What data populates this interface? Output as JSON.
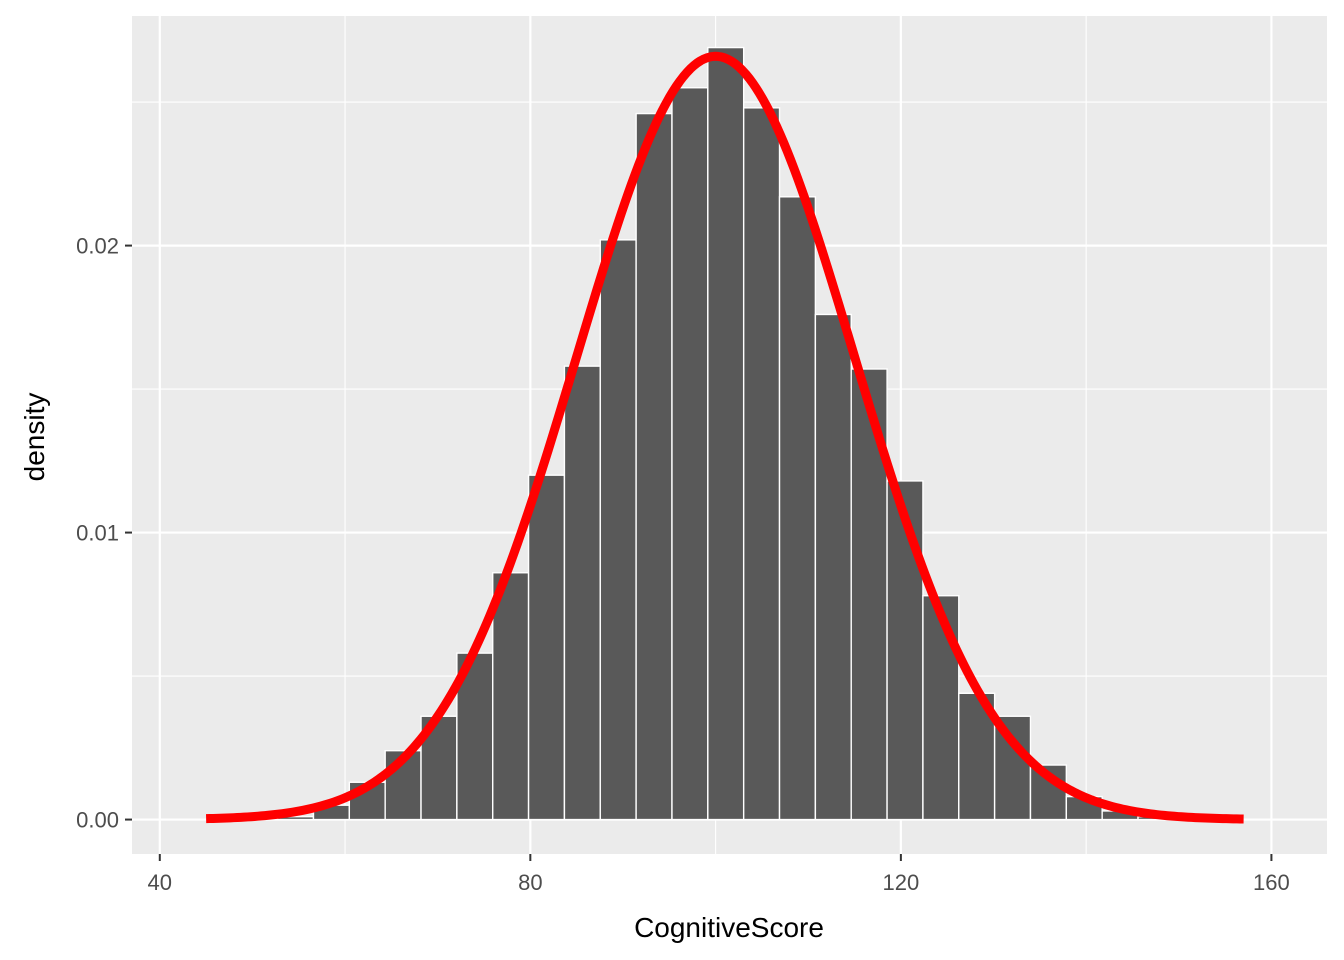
{
  "chart_data": {
    "type": "bar",
    "xlabel": "CognitiveScore",
    "ylabel": "density",
    "xlim": [
      37,
      166
    ],
    "ylim": [
      -0.0012,
      0.028
    ],
    "x_major_ticks": [
      40,
      80,
      120,
      160
    ],
    "x_tick_labels": [
      "40",
      "80",
      "120",
      "160"
    ],
    "x_minor_ticks": [
      60,
      100,
      140
    ],
    "y_major_ticks": [
      0.0,
      0.01,
      0.02
    ],
    "y_tick_labels": [
      "0.00",
      "0.01",
      "0.02"
    ],
    "y_minor_ticks": [
      0.005,
      0.015,
      0.025
    ],
    "grid": true,
    "bin_width": 3.87,
    "bar_fill": "#595959",
    "bar_outline": "#ffffff",
    "panel_background": "#ebebeb",
    "histogram": [
      {
        "x_start": 48.85,
        "x_end": 52.72,
        "density": 5e-05
      },
      {
        "x_start": 52.72,
        "x_end": 56.59,
        "density": 0.0001
      },
      {
        "x_start": 56.59,
        "x_end": 60.46,
        "density": 0.0005
      },
      {
        "x_start": 60.46,
        "x_end": 64.33,
        "density": 0.0013
      },
      {
        "x_start": 64.33,
        "x_end": 68.2,
        "density": 0.0024
      },
      {
        "x_start": 68.2,
        "x_end": 72.07,
        "density": 0.0036
      },
      {
        "x_start": 72.07,
        "x_end": 75.94,
        "density": 0.0058
      },
      {
        "x_start": 75.94,
        "x_end": 79.81,
        "density": 0.0086
      },
      {
        "x_start": 79.81,
        "x_end": 83.68,
        "density": 0.012
      },
      {
        "x_start": 83.68,
        "x_end": 87.55,
        "density": 0.0158
      },
      {
        "x_start": 87.55,
        "x_end": 91.42,
        "density": 0.0202
      },
      {
        "x_start": 91.42,
        "x_end": 95.29,
        "density": 0.0246
      },
      {
        "x_start": 95.29,
        "x_end": 99.16,
        "density": 0.0255
      },
      {
        "x_start": 99.16,
        "x_end": 103.03,
        "density": 0.0269
      },
      {
        "x_start": 103.03,
        "x_end": 106.9,
        "density": 0.0248
      },
      {
        "x_start": 106.9,
        "x_end": 110.77,
        "density": 0.0217
      },
      {
        "x_start": 110.77,
        "x_end": 114.64,
        "density": 0.0176
      },
      {
        "x_start": 114.64,
        "x_end": 118.51,
        "density": 0.0157
      },
      {
        "x_start": 118.51,
        "x_end": 122.38,
        "density": 0.0118
      },
      {
        "x_start": 122.38,
        "x_end": 126.25,
        "density": 0.0078
      },
      {
        "x_start": 126.25,
        "x_end": 130.12,
        "density": 0.0044
      },
      {
        "x_start": 130.12,
        "x_end": 133.99,
        "density": 0.0036
      },
      {
        "x_start": 133.99,
        "x_end": 137.86,
        "density": 0.0019
      },
      {
        "x_start": 137.86,
        "x_end": 141.73,
        "density": 0.0008
      },
      {
        "x_start": 141.73,
        "x_end": 145.6,
        "density": 0.0003
      },
      {
        "x_start": 145.6,
        "x_end": 149.47,
        "density": 0.0001
      }
    ],
    "density_curve": {
      "distribution": "normal",
      "mean": 100,
      "sd": 15,
      "x_range": [
        45,
        157
      ],
      "color": "#ff0000"
    }
  }
}
